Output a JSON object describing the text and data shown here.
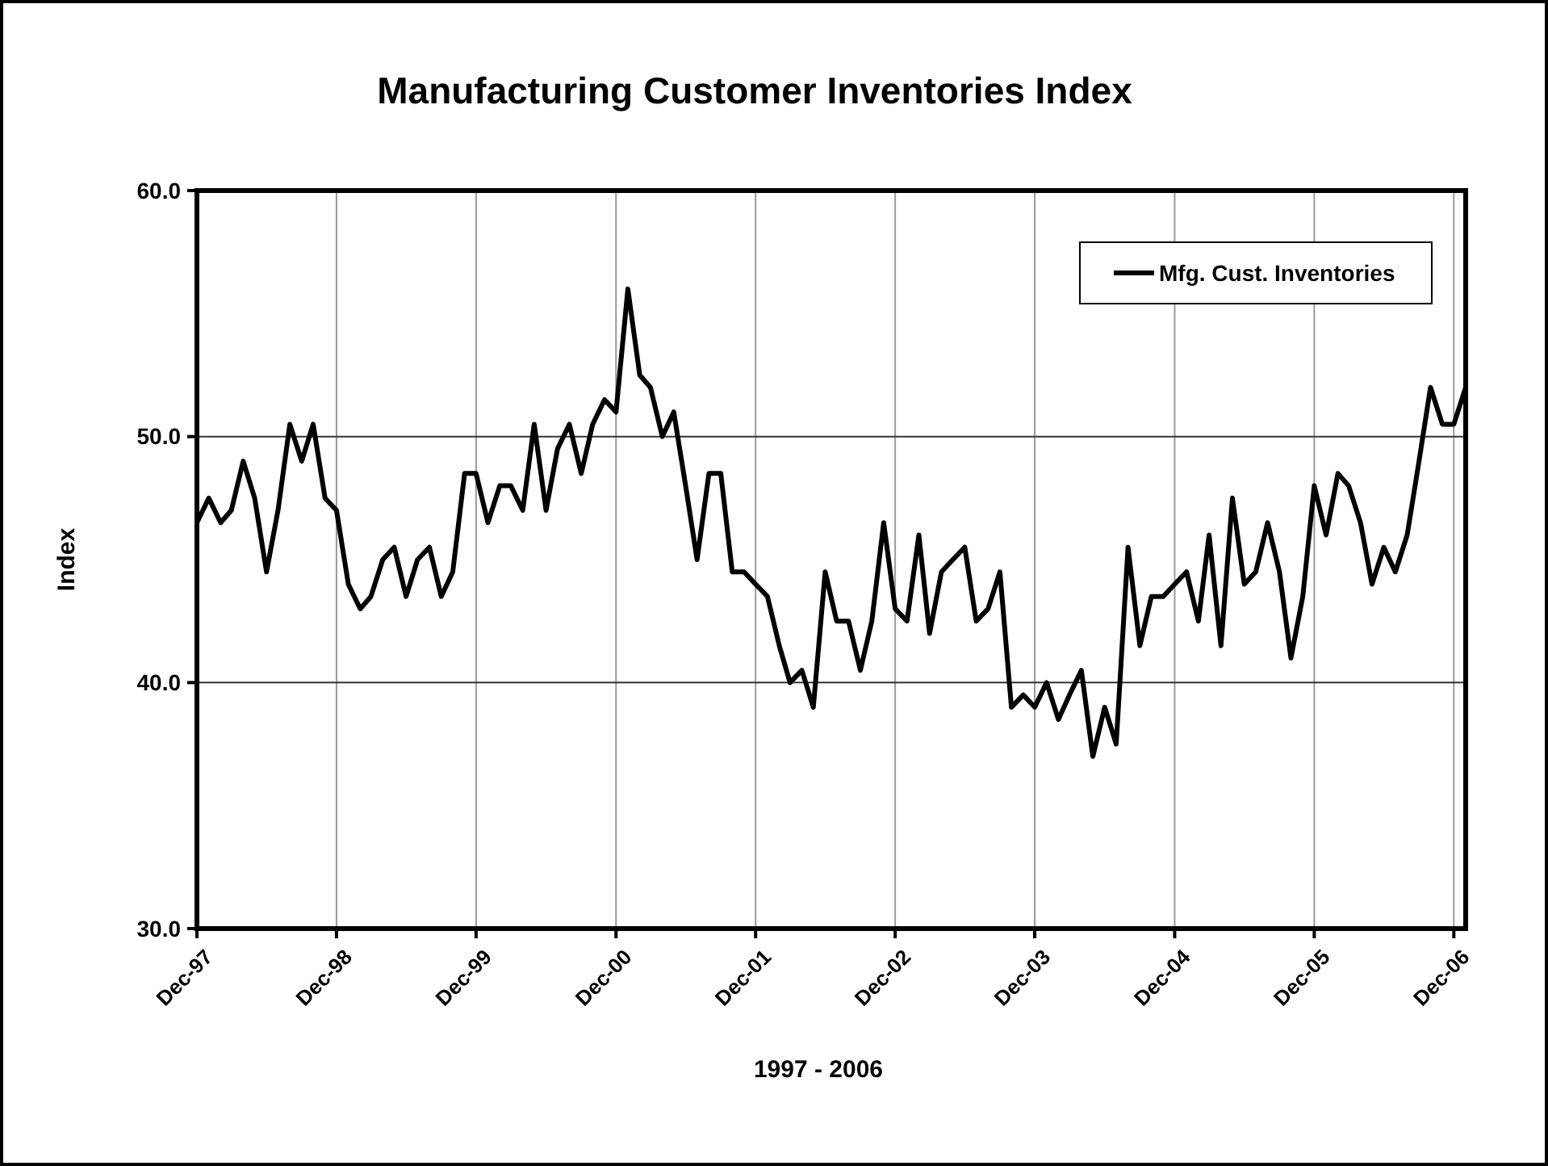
{
  "chart_data": {
    "type": "line",
    "title": "Manufacturing Customer Inventories Index",
    "xlabel": "1997 - 2006",
    "ylabel": "Index",
    "x": [
      "1997-12",
      "1998-01",
      "1998-02",
      "1998-03",
      "1998-04",
      "1998-05",
      "1998-06",
      "1998-07",
      "1998-08",
      "1998-09",
      "1998-10",
      "1998-11",
      "1998-12",
      "1999-01",
      "1999-02",
      "1999-03",
      "1999-04",
      "1999-05",
      "1999-06",
      "1999-07",
      "1999-08",
      "1999-09",
      "1999-10",
      "1999-11",
      "1999-12",
      "2000-01",
      "2000-02",
      "2000-03",
      "2000-04",
      "2000-05",
      "2000-06",
      "2000-07",
      "2000-08",
      "2000-09",
      "2000-10",
      "2000-11",
      "2000-12",
      "2001-01",
      "2001-02",
      "2001-03",
      "2001-04",
      "2001-05",
      "2001-06",
      "2001-07",
      "2001-08",
      "2001-09",
      "2001-10",
      "2001-11",
      "2001-12",
      "2002-01",
      "2002-02",
      "2002-03",
      "2002-04",
      "2002-05",
      "2002-06",
      "2002-07",
      "2002-08",
      "2002-09",
      "2002-10",
      "2002-11",
      "2002-12",
      "2003-01",
      "2003-02",
      "2003-03",
      "2003-04",
      "2003-05",
      "2003-06",
      "2003-07",
      "2003-08",
      "2003-09",
      "2003-10",
      "2003-11",
      "2003-12",
      "2004-01",
      "2004-02",
      "2004-03",
      "2004-04",
      "2004-05",
      "2004-06",
      "2004-07",
      "2004-08",
      "2004-09",
      "2004-10",
      "2004-11",
      "2004-12",
      "2005-01",
      "2005-02",
      "2005-03",
      "2005-04",
      "2005-05",
      "2005-06",
      "2005-07",
      "2005-08",
      "2005-09",
      "2005-10",
      "2005-11",
      "2005-12",
      "2006-01",
      "2006-02",
      "2006-03",
      "2006-04",
      "2006-05",
      "2006-06",
      "2006-07",
      "2006-08",
      "2006-09",
      "2006-10",
      "2006-11",
      "2006-12",
      "2007-01"
    ],
    "series": [
      {
        "name": "Mfg. Cust. Inventories",
        "color": "#000000",
        "values": [
          46.5,
          47.5,
          46.5,
          47,
          49,
          47.5,
          44.5,
          47,
          50.5,
          49,
          50.5,
          47.5,
          47,
          44,
          43,
          43.5,
          45,
          45.5,
          43.5,
          45,
          45.5,
          43.5,
          44.5,
          48.5,
          48.5,
          46.5,
          48,
          48,
          47,
          50.5,
          47,
          49.5,
          50.5,
          48.5,
          50.5,
          51.5,
          51,
          56,
          52.5,
          52,
          50,
          51,
          48,
          45,
          48.5,
          48.5,
          44.5,
          44.5,
          44,
          43.5,
          41.5,
          40,
          40.5,
          39,
          44.5,
          42.5,
          42.5,
          40.5,
          42.5,
          46.5,
          43,
          42.5,
          46,
          42,
          44.5,
          45,
          45.5,
          42.5,
          43,
          44.5,
          39,
          39.5,
          39,
          40,
          38.5,
          39.5,
          40.5,
          37,
          39,
          37.5,
          45.5,
          41.5,
          43.5,
          43.5,
          44,
          44.5,
          42.5,
          46,
          41.5,
          47.5,
          44,
          44.5,
          46.5,
          44.5,
          41,
          43.5,
          48,
          46,
          48.5,
          48,
          46.5,
          44,
          45.5,
          44.5,
          46,
          49,
          52,
          50.5,
          50.5,
          52
        ]
      }
    ],
    "xlim": [
      "1997-12",
      "2007-01"
    ],
    "xticks": [
      {
        "value": "1997-12",
        "label": "Dec-97"
      },
      {
        "value": "1998-12",
        "label": "Dec-98"
      },
      {
        "value": "1999-12",
        "label": "Dec-99"
      },
      {
        "value": "2000-12",
        "label": "Dec-00"
      },
      {
        "value": "2001-12",
        "label": "Dec-01"
      },
      {
        "value": "2002-12",
        "label": "Dec-02"
      },
      {
        "value": "2003-12",
        "label": "Dec-03"
      },
      {
        "value": "2004-12",
        "label": "Dec-04"
      },
      {
        "value": "2005-12",
        "label": "Dec-05"
      },
      {
        "value": "2006-12",
        "label": "Dec-06"
      }
    ],
    "ylim": [
      30,
      60
    ],
    "yticks": [
      {
        "value": 30,
        "label": "30.0"
      },
      {
        "value": 40,
        "label": "40.0"
      },
      {
        "value": 50,
        "label": "50.0"
      },
      {
        "value": 60,
        "label": "60.0"
      }
    ],
    "grid": true,
    "legend": "top right",
    "marker": "none",
    "line_style": "solid"
  }
}
